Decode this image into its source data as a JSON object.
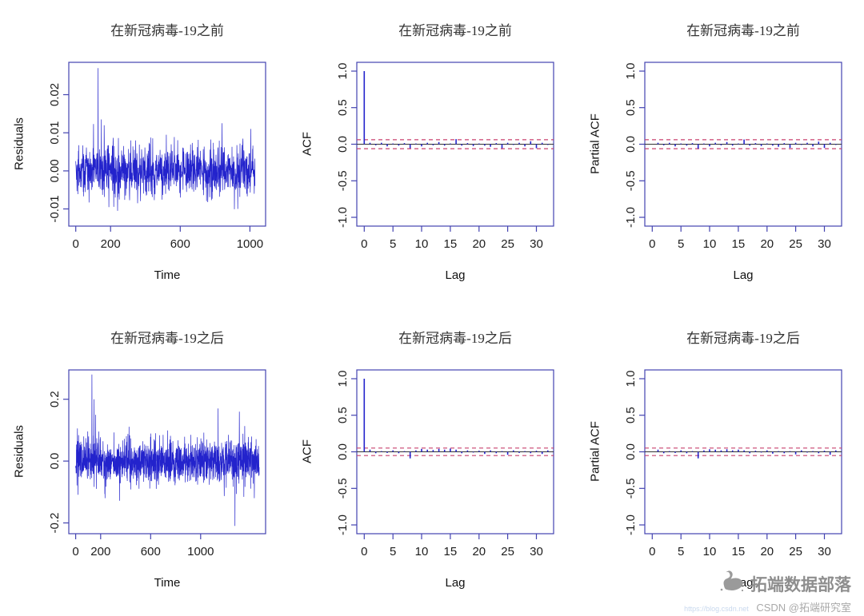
{
  "colors": {
    "series": "#2323cc",
    "box": "#4343b0",
    "tick_text": "#1d1d1d",
    "conf_band": "#c8406e",
    "zero_line": "#333333",
    "watermark_grey": "#9a9a9a"
  },
  "watermark": {
    "brand": "拓端数据部落",
    "csdn": "CSDN @拓端研究室",
    "url": "https://blog.csdn.net"
  },
  "chart_data": [
    {
      "type": "line",
      "title": "在新冠病毒-19之前",
      "xlabel": "Time",
      "ylabel": "Residuals",
      "xlim": [
        -40,
        1090
      ],
      "ylim": [
        -0.0145,
        0.0285
      ],
      "xticks": [
        {
          "v": 0,
          "l": "0"
        },
        {
          "v": 200,
          "l": "200"
        },
        {
          "v": 600,
          "l": "600"
        },
        {
          "v": 1000,
          "l": "1000"
        }
      ],
      "yticks": [
        {
          "v": -0.01,
          "l": "-0.01"
        },
        {
          "v": 0,
          "l": "0.00"
        },
        {
          "v": 0.01,
          "l": "0.01"
        },
        {
          "v": 0.02,
          "l": "0.02"
        }
      ],
      "series": {
        "n": 1030,
        "seed": 42,
        "sd": 0.0032,
        "spikes": [
          [
            128,
            0.027
          ],
          [
            147,
            0.0135
          ],
          [
            163,
            0.012
          ],
          [
            190,
            -0.0095
          ],
          [
            240,
            -0.0105
          ],
          [
            520,
            0.0095
          ],
          [
            840,
            0.0125
          ],
          [
            930,
            -0.01
          ],
          [
            1005,
            0.011
          ]
        ]
      }
    },
    {
      "type": "stem",
      "title": "在新冠病毒-19之前",
      "xlabel": "Lag",
      "ylabel": "ACF",
      "xlim": [
        -1.3,
        33
      ],
      "ylim": [
        -1.12,
        1.12
      ],
      "xticks": [
        {
          "v": 0,
          "l": "0"
        },
        {
          "v": 5,
          "l": "5"
        },
        {
          "v": 10,
          "l": "10"
        },
        {
          "v": 15,
          "l": "15"
        },
        {
          "v": 20,
          "l": "20"
        },
        {
          "v": 25,
          "l": "25"
        },
        {
          "v": 30,
          "l": "30"
        }
      ],
      "yticks": [
        {
          "v": -1,
          "l": "-1.0"
        },
        {
          "v": -0.5,
          "l": "-0.5"
        },
        {
          "v": 0,
          "l": "0.0"
        },
        {
          "v": 0.5,
          "l": "0.5"
        },
        {
          "v": 1,
          "l": "1.0"
        }
      ],
      "ci": 0.061,
      "lag_start": 0,
      "values": [
        1.0,
        0.02,
        -0.015,
        0.02,
        -0.03,
        0.01,
        -0.02,
        0.015,
        -0.055,
        0.01,
        -0.03,
        0.02,
        -0.015,
        0.03,
        -0.02,
        0.01,
        0.07,
        -0.02,
        0.015,
        -0.025,
        0.01,
        -0.02,
        -0.035,
        0.015,
        -0.055,
        0.02,
        -0.01,
        0.02,
        -0.03,
        0.04,
        -0.055,
        0.02,
        -0.01
      ]
    },
    {
      "type": "stem",
      "title": "在新冠病毒-19之前",
      "xlabel": "Lag",
      "ylabel": "Partial ACF",
      "xlim": [
        -1.3,
        33
      ],
      "ylim": [
        -1.12,
        1.12
      ],
      "xticks": [
        {
          "v": 0,
          "l": "0"
        },
        {
          "v": 5,
          "l": "5"
        },
        {
          "v": 10,
          "l": "10"
        },
        {
          "v": 15,
          "l": "15"
        },
        {
          "v": 20,
          "l": "20"
        },
        {
          "v": 25,
          "l": "25"
        },
        {
          "v": 30,
          "l": "30"
        }
      ],
      "yticks": [
        {
          "v": -1,
          "l": "-1.0"
        },
        {
          "v": -0.5,
          "l": "-0.5"
        },
        {
          "v": 0,
          "l": "0.0"
        },
        {
          "v": 0.5,
          "l": "0.5"
        },
        {
          "v": 1,
          "l": "1.0"
        }
      ],
      "ci": 0.061,
      "lag_start": 1,
      "values": [
        0.02,
        -0.015,
        0.02,
        -0.03,
        0.01,
        -0.02,
        0.015,
        -0.06,
        0.01,
        -0.03,
        0.02,
        -0.015,
        0.03,
        -0.02,
        0.01,
        0.065,
        -0.02,
        0.015,
        -0.025,
        0.01,
        -0.02,
        -0.035,
        0.015,
        -0.05,
        0.02,
        -0.01,
        0.02,
        -0.03,
        0.035,
        -0.05,
        0.02,
        -0.01
      ]
    },
    {
      "type": "line",
      "title": "在新冠病毒-19之后",
      "xlabel": "Time",
      "ylabel": "Residuals",
      "xlim": [
        -55,
        1520
      ],
      "ylim": [
        -0.235,
        0.295
      ],
      "xticks": [
        {
          "v": 0,
          "l": "0"
        },
        {
          "v": 200,
          "l": "200"
        },
        {
          "v": 600,
          "l": "600"
        },
        {
          "v": 1000,
          "l": "1000"
        }
      ],
      "yticks": [
        {
          "v": -0.2,
          "l": "-0.2"
        },
        {
          "v": 0,
          "l": "0.0"
        },
        {
          "v": 0.2,
          "l": "0.2"
        }
      ],
      "series": {
        "n": 1470,
        "seed": 7,
        "sd": 0.035,
        "spikes": [
          [
            130,
            0.28
          ],
          [
            146,
            0.2
          ],
          [
            160,
            0.15
          ],
          [
            235,
            -0.12
          ],
          [
            640,
            0.09
          ],
          [
            700,
            0.085
          ],
          [
            1140,
            0.17
          ],
          [
            1275,
            -0.21
          ],
          [
            1310,
            0.16
          ],
          [
            1430,
            -0.12
          ]
        ]
      }
    },
    {
      "type": "stem",
      "title": "在新冠病毒-19之后",
      "xlabel": "Lag",
      "ylabel": "ACF",
      "xlim": [
        -1.3,
        33
      ],
      "ylim": [
        -1.12,
        1.12
      ],
      "xticks": [
        {
          "v": 0,
          "l": "0"
        },
        {
          "v": 5,
          "l": "5"
        },
        {
          "v": 10,
          "l": "10"
        },
        {
          "v": 15,
          "l": "15"
        },
        {
          "v": 20,
          "l": "20"
        },
        {
          "v": 25,
          "l": "25"
        },
        {
          "v": 30,
          "l": "30"
        }
      ],
      "yticks": [
        {
          "v": -1,
          "l": "-1.0"
        },
        {
          "v": -0.5,
          "l": "-0.5"
        },
        {
          "v": 0,
          "l": "0.0"
        },
        {
          "v": 0.5,
          "l": "0.5"
        },
        {
          "v": 1,
          "l": "1.0"
        }
      ],
      "ci": 0.051,
      "lag_start": 0,
      "values": [
        1.0,
        0.03,
        -0.02,
        0.01,
        -0.015,
        0.02,
        -0.02,
        0.01,
        -0.09,
        0.02,
        0.04,
        0.03,
        0.025,
        0.04,
        0.03,
        0.045,
        0.03,
        -0.02,
        0.02,
        -0.01,
        0.015,
        -0.03,
        0.02,
        -0.02,
        0.01,
        -0.04,
        0.02,
        -0.015,
        0.01,
        -0.02,
        0.015,
        -0.03,
        0.02
      ]
    },
    {
      "type": "stem",
      "title": "在新冠病毒-19之后",
      "xlabel": "Lag",
      "ylabel": "Partial ACF",
      "xlim": [
        -1.3,
        33
      ],
      "ylim": [
        -1.12,
        1.12
      ],
      "xticks": [
        {
          "v": 0,
          "l": "0"
        },
        {
          "v": 5,
          "l": "5"
        },
        {
          "v": 10,
          "l": "10"
        },
        {
          "v": 15,
          "l": "15"
        },
        {
          "v": 20,
          "l": "20"
        },
        {
          "v": 25,
          "l": "25"
        },
        {
          "v": 30,
          "l": "30"
        }
      ],
      "yticks": [
        {
          "v": -1,
          "l": "-1.0"
        },
        {
          "v": -0.5,
          "l": "-0.5"
        },
        {
          "v": 0,
          "l": "0.0"
        },
        {
          "v": 0.5,
          "l": "0.5"
        },
        {
          "v": 1,
          "l": "1.0"
        }
      ],
      "ci": 0.051,
      "lag_start": 1,
      "values": [
        0.03,
        -0.02,
        0.01,
        -0.015,
        0.02,
        -0.02,
        0.01,
        -0.09,
        0.02,
        0.035,
        0.03,
        0.02,
        0.035,
        0.02,
        0.03,
        0.02,
        -0.02,
        0.015,
        -0.01,
        0.02,
        -0.025,
        0.01,
        -0.02,
        0.01,
        -0.035,
        0.02,
        -0.01,
        0.01,
        -0.02,
        0.015,
        -0.04,
        0.02
      ]
    }
  ]
}
